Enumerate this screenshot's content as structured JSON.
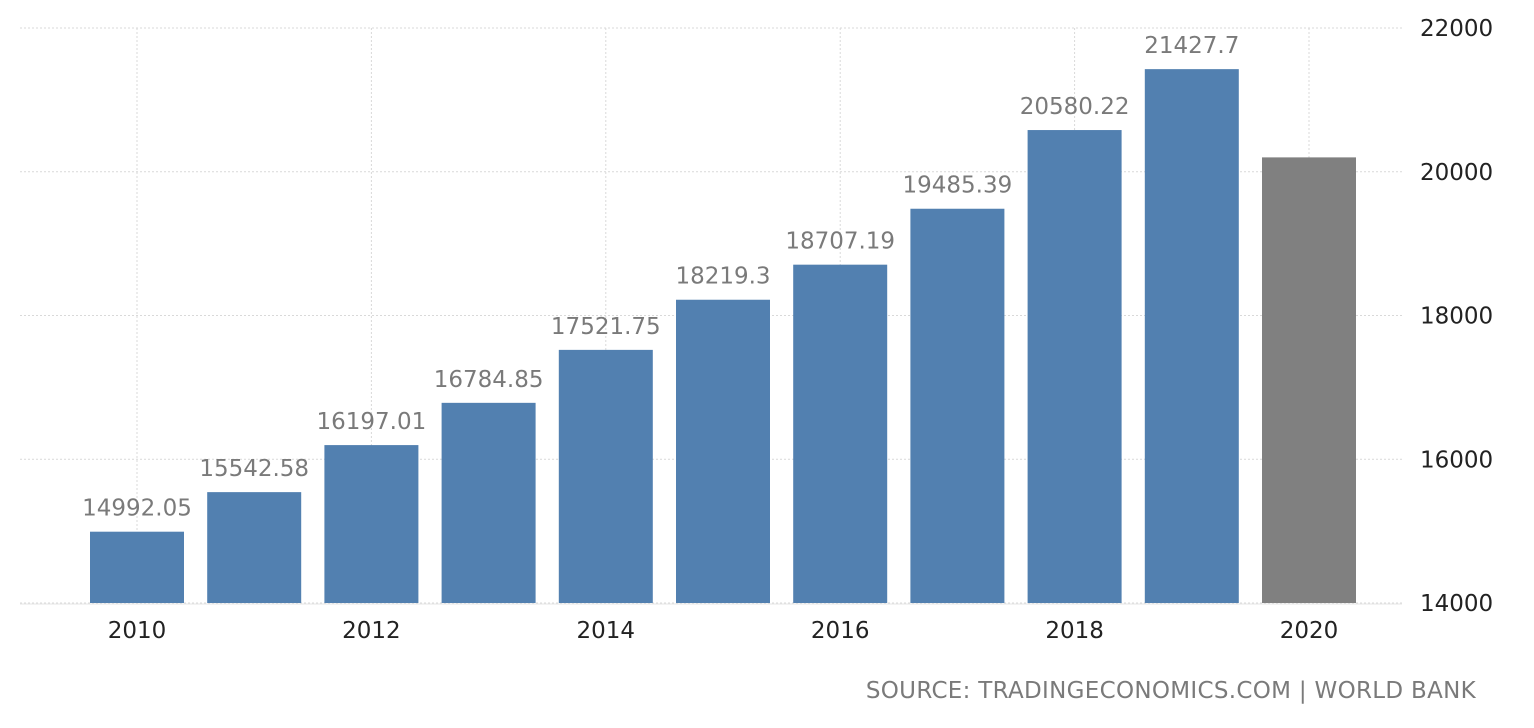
{
  "source": "SOURCE: TRADINGECONOMICS.COM | WORLD BANK",
  "colors": {
    "bar": "#5280b0",
    "forecast_bar": "#808080",
    "label": "#7a7a7a",
    "grid": "#d9d9d9",
    "axis_text": "#222222"
  },
  "chart_data": {
    "type": "bar",
    "categories": [
      "2010",
      "2011",
      "2012",
      "2013",
      "2014",
      "2015",
      "2016",
      "2017",
      "2018",
      "2019",
      "2020"
    ],
    "values": [
      14992.05,
      15542.58,
      16197.01,
      16784.85,
      17521.75,
      18219.3,
      18707.19,
      19485.39,
      20580.22,
      21427.7,
      20200
    ],
    "value_labels": [
      "14992.05",
      "15542.58",
      "16197.01",
      "16784.85",
      "17521.75",
      "18219.3",
      "18707.19",
      "19485.39",
      "20580.22",
      "21427.7",
      ""
    ],
    "x_tick_labels": [
      "2010",
      "2012",
      "2014",
      "2016",
      "2018",
      "2020"
    ],
    "y_ticks": [
      14000,
      16000,
      18000,
      20000,
      22000
    ],
    "ylim": [
      14000,
      22000
    ],
    "y_axis_side": "right",
    "grid": true,
    "title": "",
    "xlabel": "",
    "ylabel": ""
  }
}
